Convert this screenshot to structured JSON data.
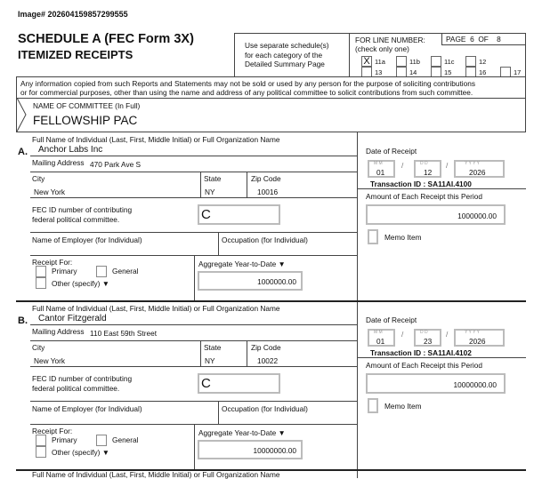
{
  "image_number": "Image# 202604159857299555",
  "header": {
    "title": "SCHEDULE A  (FEC Form 3X)",
    "subtitle": "ITEMIZED RECEIPTS",
    "instructions": [
      "Use separate schedule(s)",
      "for each category of the",
      "Detailed Summary Page"
    ],
    "line_number_label": "FOR LINE NUMBER:",
    "check_one": "(check only one)",
    "page_label": "PAGE",
    "page": "6",
    "of_label": "OF",
    "total_pages": "8",
    "lines": [
      {
        "label": "11a",
        "checked": true
      },
      {
        "label": "11b",
        "checked": false
      },
      {
        "label": "11c",
        "checked": false
      },
      {
        "label": "12",
        "checked": false
      },
      {
        "label": "13",
        "checked": false
      },
      {
        "label": "14",
        "checked": false
      },
      {
        "label": "15",
        "checked": false
      },
      {
        "label": "16",
        "checked": false
      },
      {
        "label": "17",
        "checked": false
      }
    ],
    "check_mark": "X"
  },
  "notice": [
    "Any information copied from such Reports and Statements may not be sold or used by any person for the purpose of soliciting contributions",
    "or for commercial purposes, other than using the name and address of any political committee to solicit contributions from such committee."
  ],
  "committee": {
    "label": "NAME OF COMMITTEE (In Full)",
    "name": "FELLOWSHIP PAC"
  },
  "labels": {
    "full_name": "Full Name of Individual (Last, First, Middle Initial) or Full Organization Name",
    "mailing": "Mailing Address",
    "city": "City",
    "state": "State",
    "zip": "Zip Code",
    "fec_id_1": "FEC ID number of contributing",
    "fec_id_2": "federal political committee.",
    "fec_prefix": "C",
    "employer": "Name of Employer (for Individual)",
    "occupation": "Occupation (for Individual)",
    "receipt_for": "Receipt For:",
    "primary": "Primary",
    "general": "General",
    "other": "Other (specify) ▼",
    "aggregate": "Aggregate Year-to-Date ▼",
    "date_of_receipt": "Date of Receipt",
    "amount": "Amount of Each Receipt this Period",
    "memo": "Memo Item",
    "slash": "/",
    "mm": "M  M",
    "dd": "D  D",
    "yyyy": "Y  Y  Y  Y"
  },
  "receipts": [
    {
      "letter": "A.",
      "name": "Anchor Labs Inc",
      "address": "470 Park Ave S",
      "city": "New York",
      "state": "NY",
      "zip": "10016",
      "month": "01",
      "day": "12",
      "year": "2026",
      "transaction_id": "Transaction ID : SA11AI.4100",
      "amount": "1000000.00",
      "aggregate": "1000000.00",
      "memo": false
    },
    {
      "letter": "B.",
      "name": "Cantor Fitzgerald",
      "address": "110 East 59th Street",
      "city": "New York",
      "state": "NY",
      "zip": "10022",
      "month": "01",
      "day": "23",
      "year": "2026",
      "transaction_id": "Transaction ID : SA11AI.4102",
      "amount": "10000000.00",
      "aggregate": "10000000.00",
      "memo": false
    }
  ],
  "next_section_label": "Full Name of Individual (Last, First, Middle Initial) or Full Organization Name"
}
